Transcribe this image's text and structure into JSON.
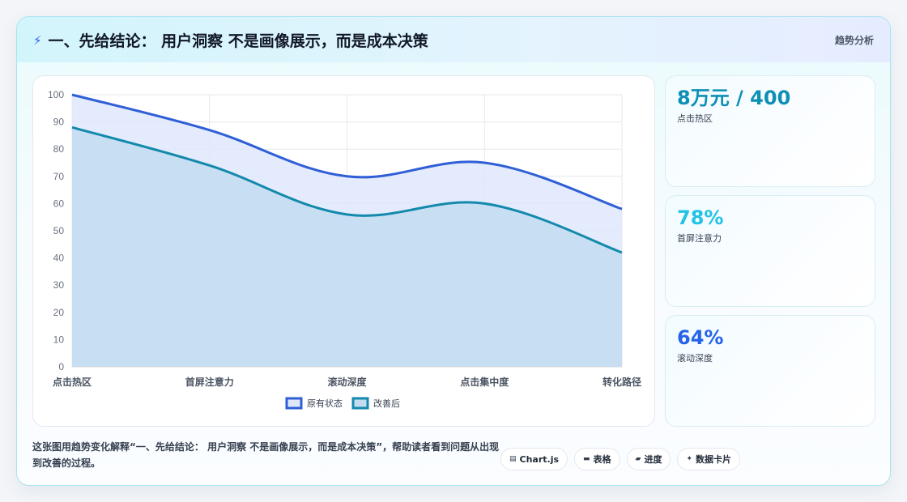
{
  "header": {
    "title": "一、先给结论： 用户洞察 不是画像展示，而是成本决策",
    "tag": "趋势分析"
  },
  "stats": [
    {
      "value": "8万元 / 400",
      "label": "点击热区",
      "color": "#0e8fb5"
    },
    {
      "value": "78%",
      "label": "首屏注意力",
      "color": "#22c3e6"
    },
    {
      "value": "64%",
      "label": "滚动深度",
      "color": "#2563eb"
    }
  ],
  "description": "这张图用趋势变化解释“一、先给结论： 用户洞察 不是画像展示，而是成本决策”，帮助读者看到问题从出现到改善的过程。",
  "pills": [
    {
      "icon": "chart-icon",
      "glyph": "▤",
      "label": "Chart.js"
    },
    {
      "icon": "table-icon",
      "glyph": "▬",
      "label": "表格"
    },
    {
      "icon": "progress-icon",
      "glyph": "▰",
      "label": "进度"
    },
    {
      "icon": "card-icon",
      "glyph": "✦",
      "label": "数据卡片"
    }
  ],
  "chart_data": {
    "type": "area",
    "categories": [
      "点击热区",
      "首屏注意力",
      "滚动深度",
      "点击集中度",
      "转化路径"
    ],
    "series": [
      {
        "name": "原有状态",
        "values": [
          100,
          87,
          70,
          75,
          58
        ],
        "color": "#2f5fd6",
        "fill": "#dfe8fb"
      },
      {
        "name": "改善后",
        "values": [
          88,
          74,
          56,
          60,
          42
        ],
        "color": "#138aac",
        "fill": "#c3dcf1"
      }
    ],
    "ylim": [
      0,
      100
    ],
    "yticks": [
      0,
      10,
      20,
      30,
      40,
      50,
      60,
      70,
      80,
      90,
      100
    ],
    "grid": true,
    "legend": "bottom"
  }
}
